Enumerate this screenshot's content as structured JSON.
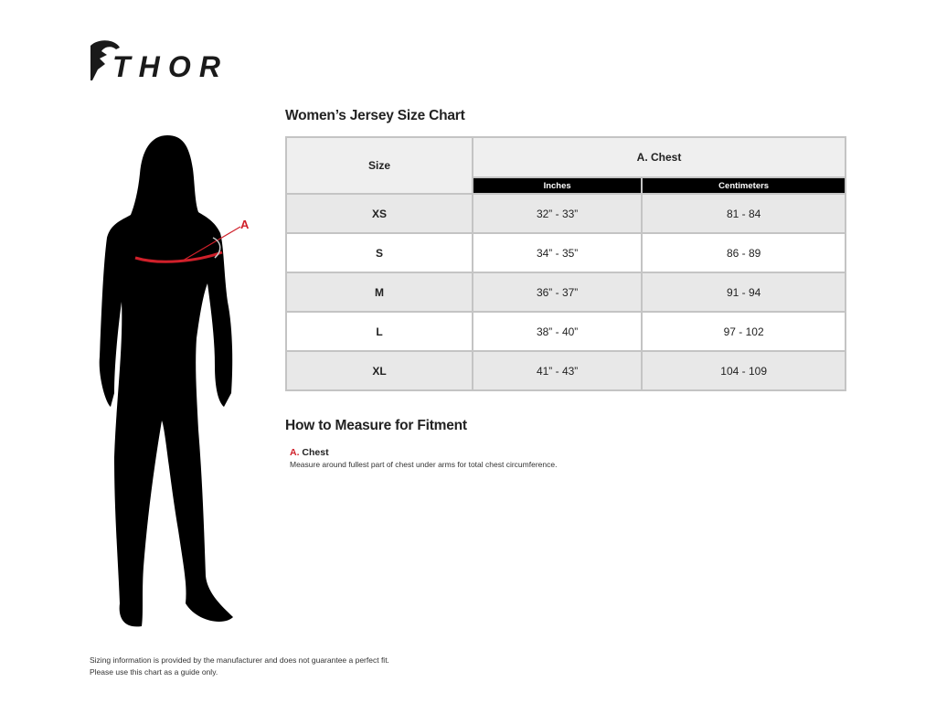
{
  "brand": {
    "logo_text": "THOR"
  },
  "chart": {
    "title": "Women’s Jersey Size Chart",
    "size_header": "Size",
    "group_header": "A. Chest",
    "unit_headers": [
      "Inches",
      "Centimeters"
    ],
    "rows": [
      {
        "size": "XS",
        "inches": "32” - 33”",
        "cm": "81 - 84"
      },
      {
        "size": "S",
        "inches": "34” - 35”",
        "cm": "86 - 89"
      },
      {
        "size": "M",
        "inches": "36” - 37”",
        "cm": "91 - 94"
      },
      {
        "size": "L",
        "inches": "38” - 40”",
        "cm": "97 - 102"
      },
      {
        "size": "XL",
        "inches": "41” - 43”",
        "cm": "104 - 109"
      }
    ]
  },
  "figure": {
    "marker_label": "A",
    "marker_color": "#d0202a"
  },
  "measure": {
    "title": "How to Measure for Fitment",
    "items": [
      {
        "letter": "A.",
        "name": "Chest",
        "description": "Measure around fullest part of chest under arms for total chest circumference."
      }
    ]
  },
  "footer": {
    "line1": "Sizing information is provided by the manufacturer and does not guarantee a perfect fit.",
    "line2": "Please use this chart as a guide only."
  }
}
